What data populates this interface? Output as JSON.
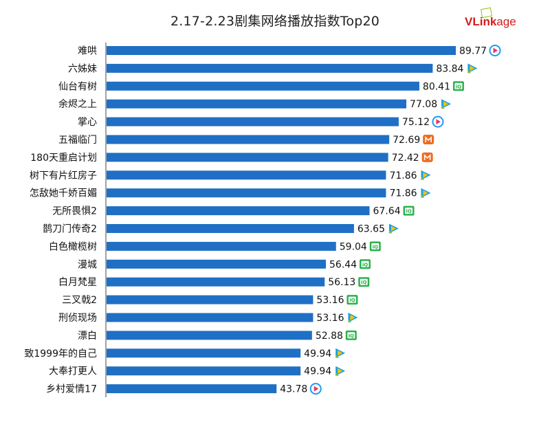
{
  "logo": {
    "text_v": "V",
    "text_link": "Link",
    "text_age": "age"
  },
  "colors": {
    "bar": "#1f6fc5",
    "tencent": "#1aa1e6",
    "iqiyi": "#2bb24c",
    "mango": "#f06b1d",
    "youku": "#1e9bf0"
  },
  "chart_data": {
    "type": "bar",
    "orientation": "horizontal",
    "title": "2.17-2.23剧集网络播放指数Top20",
    "categories": [
      "难哄",
      "六姊妹",
      "仙台有树",
      "余烬之上",
      "掌心",
      "五福临门",
      "180天重启计划",
      "树下有片红房子",
      "怎敌她千娇百媚",
      "无所畏惧2",
      "鹊刀门传奇2",
      "白色橄榄树",
      "漫城",
      "白月梵星",
      "三叉戟2",
      "刑侦现场",
      "漂白",
      "致1999年的自己",
      "大奉打更人",
      "乡村爱情17"
    ],
    "values": [
      89.77,
      83.84,
      80.41,
      77.08,
      75.12,
      72.69,
      72.42,
      71.86,
      71.86,
      67.64,
      63.65,
      59.04,
      56.44,
      56.13,
      53.16,
      53.16,
      52.88,
      49.94,
      49.94,
      43.78
    ],
    "value_labels": [
      "89.77",
      "83.84",
      "80.41",
      "77.08",
      "75.12",
      "72.69",
      "72.42",
      "71.86",
      "71.86",
      "67.64",
      "63.65",
      "59.04",
      "56.44",
      "56.13",
      "53.16",
      "53.16",
      "52.88",
      "49.94",
      "49.94",
      "43.78"
    ],
    "platform_icons": [
      "youku-icon",
      "tencent-video-icon",
      "iqiyi-icon",
      "tencent-video-icon",
      "youku-icon",
      "mango-tv-icon",
      "mango-tv-icon",
      "tencent-video-icon",
      "tencent-video-icon",
      "iqiyi-icon",
      "tencent-video-icon",
      "iqiyi-icon",
      "iqiyi-icon",
      "iqiyi-icon",
      "iqiyi-icon",
      "tencent-video-icon",
      "iqiyi-icon",
      "tencent-video-icon",
      "tencent-video-icon",
      "youku-icon"
    ],
    "xlim": [
      0,
      100
    ],
    "grid": false,
    "legend": "none"
  }
}
